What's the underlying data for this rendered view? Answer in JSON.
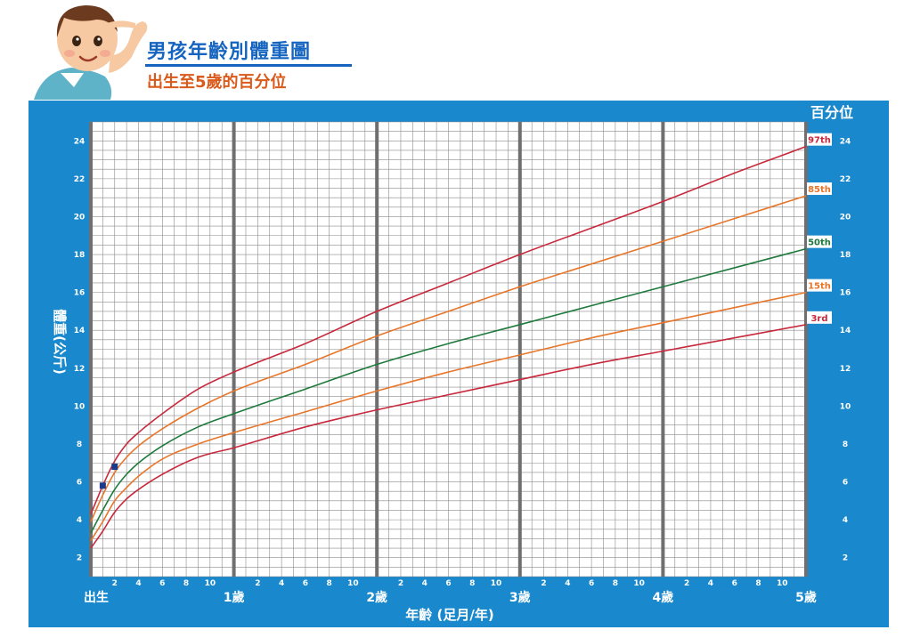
{
  "header": {
    "title": "男孩年齡別體重圖",
    "subtitle": "出生至5歲的百分位"
  },
  "colors": {
    "panel": "#1a88cc",
    "title": "#1565c0",
    "subtitle": "#d95a1b",
    "p97": "#c8283c",
    "p85": "#e8762a",
    "p50": "#1e7a3c",
    "p15": "#e8762a",
    "p3": "#c8283c",
    "marker": "#1a3a8c"
  },
  "chart_data": {
    "type": "line",
    "title": "男孩年齡別體重圖",
    "subtitle": "出生至5歲的百分位",
    "ylabel": "體重(公斤)",
    "xlabel": "年齡 (足月/年)",
    "percentile_header": "百分位",
    "x_unit": "months",
    "xlim": [
      0,
      60
    ],
    "ylim": [
      1,
      25
    ],
    "y_ticks": [
      2,
      4,
      6,
      8,
      10,
      12,
      14,
      16,
      18,
      20,
      22,
      24
    ],
    "month_tick_labels": [
      "2",
      "4",
      "6",
      "8",
      "10"
    ],
    "year_labels": [
      {
        "month": 0,
        "label": "出生"
      },
      {
        "month": 12,
        "label": "1歲"
      },
      {
        "month": 24,
        "label": "2歲"
      },
      {
        "month": 36,
        "label": "3歲"
      },
      {
        "month": 48,
        "label": "4歲"
      },
      {
        "month": 60,
        "label": "5歲"
      }
    ],
    "grid": true,
    "legend": "right",
    "x": [
      0,
      1,
      2,
      3,
      4,
      6,
      9,
      12,
      18,
      24,
      30,
      36,
      42,
      48,
      54,
      60
    ],
    "series": [
      {
        "name": "97th",
        "color": "#c8283c",
        "values": [
          4.3,
          5.8,
          7.1,
          8.0,
          8.6,
          9.6,
          10.9,
          11.8,
          13.3,
          15.0,
          16.5,
          18.0,
          19.4,
          20.8,
          22.3,
          23.7
        ]
      },
      {
        "name": "85th",
        "color": "#e8762a",
        "values": [
          3.9,
          5.3,
          6.5,
          7.3,
          7.9,
          8.8,
          9.9,
          10.8,
          12.2,
          13.7,
          15.0,
          16.3,
          17.5,
          18.7,
          19.9,
          21.1
        ]
      },
      {
        "name": "50th",
        "color": "#1e7a3c",
        "values": [
          3.3,
          4.5,
          5.6,
          6.4,
          7.0,
          7.9,
          8.9,
          9.6,
          10.9,
          12.2,
          13.3,
          14.3,
          15.3,
          16.3,
          17.3,
          18.3
        ]
      },
      {
        "name": "15th",
        "color": "#e8762a",
        "values": [
          2.9,
          3.9,
          5.0,
          5.7,
          6.3,
          7.2,
          8.0,
          8.6,
          9.7,
          10.8,
          11.8,
          12.7,
          13.6,
          14.4,
          15.2,
          16.0
        ]
      },
      {
        "name": "3rd",
        "color": "#c8283c",
        "values": [
          2.5,
          3.4,
          4.4,
          5.1,
          5.6,
          6.4,
          7.3,
          7.8,
          8.9,
          9.8,
          10.6,
          11.4,
          12.2,
          12.9,
          13.6,
          14.3
        ]
      }
    ],
    "markers": [
      {
        "x": 1,
        "y": 5.8
      },
      {
        "x": 2,
        "y": 6.8
      }
    ]
  }
}
